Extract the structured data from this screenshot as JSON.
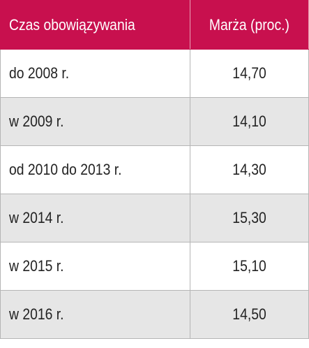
{
  "table": {
    "headers": [
      "Czas obowiązywania",
      "Marża (proc.)"
    ],
    "rows": [
      [
        "do 2008 r.",
        "14,70"
      ],
      [
        "w 2009 r.",
        "14,10"
      ],
      [
        "od 2010 do 2013 r.",
        "14,30"
      ],
      [
        "w 2014 r.",
        "15,30"
      ],
      [
        "w 2015 r.",
        "15,10"
      ],
      [
        "w 2016 r.",
        "14,50"
      ]
    ]
  }
}
